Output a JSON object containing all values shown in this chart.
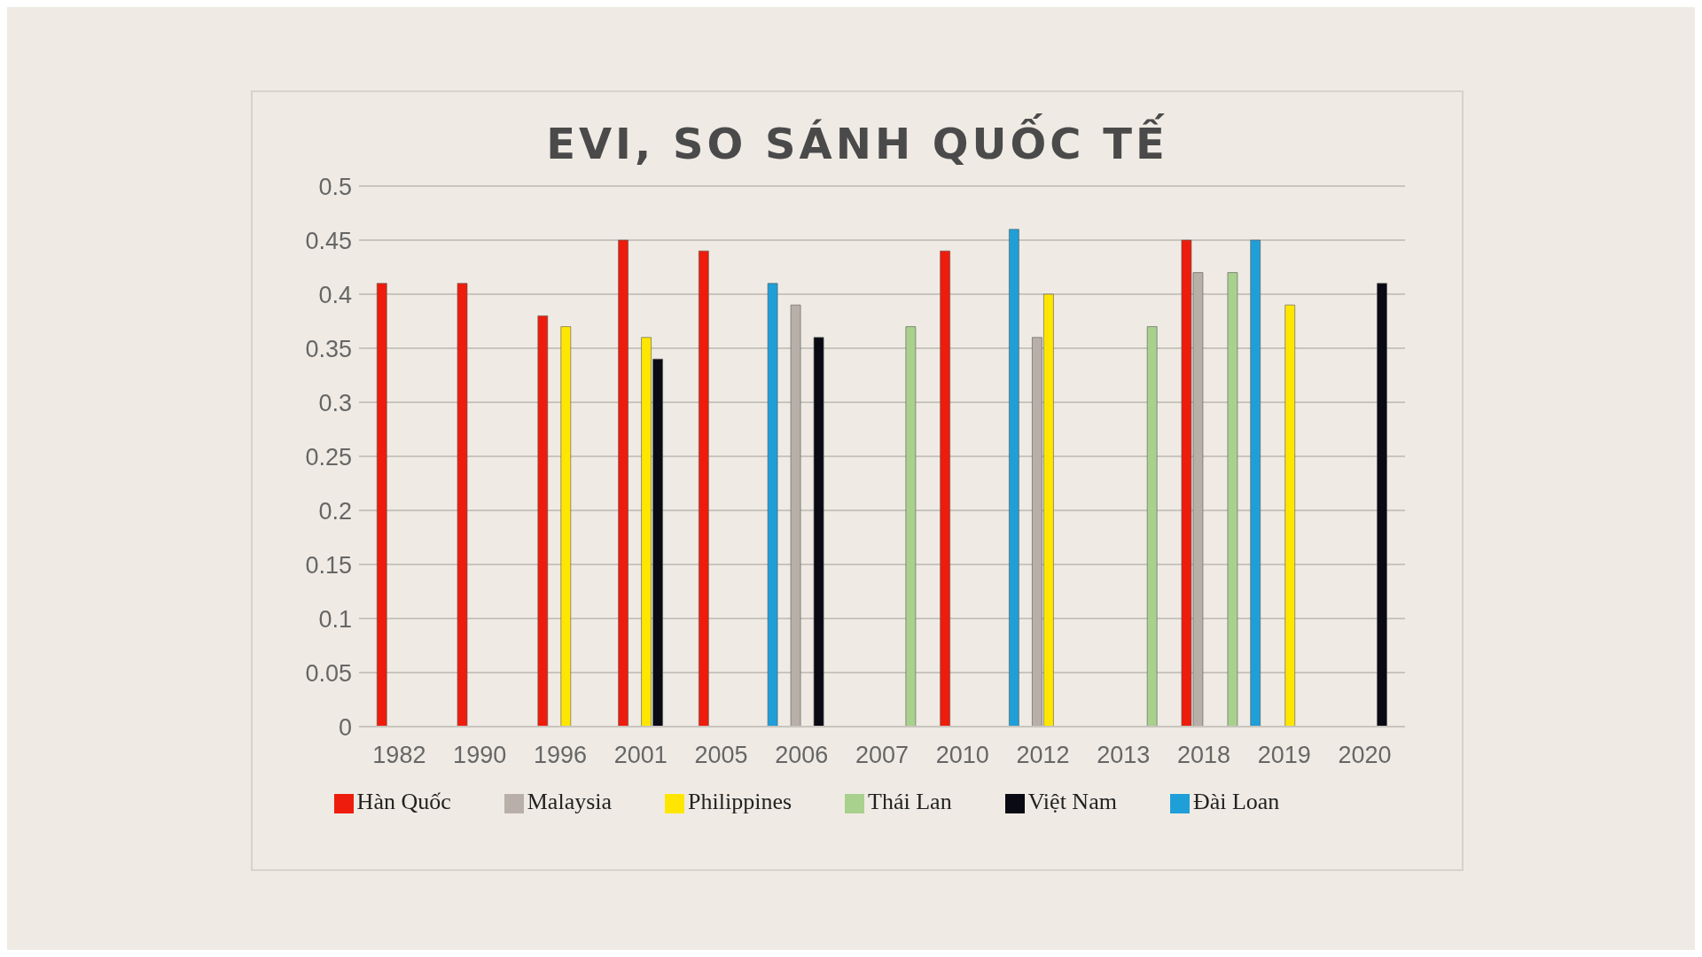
{
  "chart_data": {
    "type": "bar",
    "title": "EVI, SO SÁNH QUỐC TẾ",
    "categories": [
      "1982",
      "1990",
      "1996",
      "2001",
      "2005",
      "2006",
      "2007",
      "2010",
      "2012",
      "2013",
      "2018",
      "2019",
      "2020"
    ],
    "series": [
      {
        "name": "Đài Loan",
        "color": "#1f9fd8",
        "values": [
          null,
          null,
          null,
          null,
          null,
          0.41,
          null,
          null,
          0.46,
          null,
          null,
          0.45,
          null
        ]
      },
      {
        "name": "Hàn Quốc",
        "color": "#ee1c0c",
        "values": [
          0.41,
          0.41,
          0.38,
          0.45,
          0.44,
          null,
          null,
          0.44,
          null,
          null,
          0.45,
          null,
          null
        ]
      },
      {
        "name": "Malaysia",
        "color": "#b8b0a8",
        "values": [
          null,
          null,
          null,
          null,
          null,
          0.39,
          null,
          null,
          0.36,
          null,
          0.42,
          null,
          null
        ]
      },
      {
        "name": "Philippines",
        "color": "#ffe600",
        "values": [
          null,
          null,
          0.37,
          0.36,
          null,
          null,
          null,
          null,
          0.4,
          null,
          null,
          0.39,
          null
        ]
      },
      {
        "name": "Việt Nam",
        "color": "#0a0a14",
        "values": [
          null,
          null,
          null,
          0.34,
          null,
          0.36,
          null,
          null,
          null,
          null,
          null,
          null,
          0.41
        ]
      },
      {
        "name": "Thái Lan",
        "color": "#a9d18e",
        "values": [
          null,
          null,
          null,
          null,
          null,
          null,
          0.37,
          null,
          null,
          0.37,
          0.42,
          null,
          null
        ]
      }
    ],
    "ylim": [
      0,
      0.5
    ],
    "yticks": [
      0,
      0.05,
      0.1,
      0.15,
      0.2,
      0.25,
      0.3,
      0.35,
      0.4,
      0.45,
      0.5
    ],
    "grid": "y",
    "legend": "bottom"
  }
}
